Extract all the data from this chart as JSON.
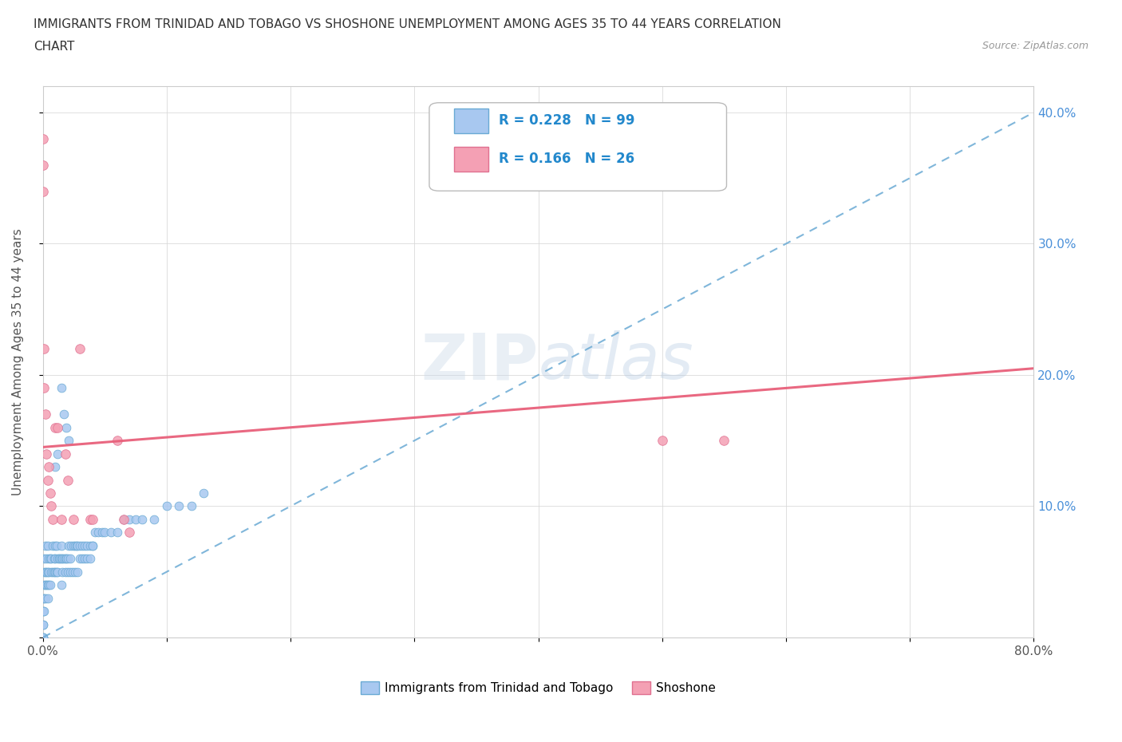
{
  "title_line1": "IMMIGRANTS FROM TRINIDAD AND TOBAGO VS SHOSHONE UNEMPLOYMENT AMONG AGES 35 TO 44 YEARS CORRELATION",
  "title_line2": "CHART",
  "source_text": "Source: ZipAtlas.com",
  "ylabel": "Unemployment Among Ages 35 to 44 years",
  "x_min": 0.0,
  "x_max": 0.8,
  "y_min": 0.0,
  "y_max": 0.42,
  "blue_color": "#a8c8f0",
  "blue_edge_color": "#6aaad4",
  "pink_color": "#f4a0b4",
  "pink_edge_color": "#e07090",
  "blue_line_color": "#6aaad4",
  "pink_line_color": "#e8607a",
  "grid_color": "#d8d8d8",
  "legend_R1": "0.228",
  "legend_N1": "99",
  "legend_R2": "0.166",
  "legend_N2": "26",
  "watermark": "ZIPatlas",
  "blue_trend_x0": 0.0,
  "blue_trend_y0": 0.0,
  "blue_trend_x1": 0.8,
  "blue_trend_y1": 0.4,
  "pink_trend_x0": 0.0,
  "pink_trend_y0": 0.145,
  "pink_trend_x1": 0.8,
  "pink_trend_y1": 0.205,
  "blue_x": [
    0.0,
    0.0,
    0.0,
    0.0,
    0.0,
    0.0,
    0.0,
    0.0,
    0.001,
    0.001,
    0.001,
    0.001,
    0.001,
    0.002,
    0.002,
    0.002,
    0.002,
    0.003,
    0.003,
    0.003,
    0.004,
    0.004,
    0.004,
    0.004,
    0.005,
    0.005,
    0.005,
    0.006,
    0.006,
    0.007,
    0.007,
    0.008,
    0.008,
    0.009,
    0.009,
    0.01,
    0.01,
    0.01,
    0.011,
    0.011,
    0.012,
    0.012,
    0.013,
    0.014,
    0.015,
    0.015,
    0.016,
    0.017,
    0.018,
    0.019,
    0.02,
    0.021,
    0.022,
    0.023,
    0.025,
    0.026,
    0.027,
    0.028,
    0.03,
    0.032,
    0.034,
    0.036,
    0.038,
    0.04,
    0.042,
    0.045,
    0.048,
    0.05,
    0.055,
    0.06,
    0.065,
    0.07,
    0.075,
    0.08,
    0.09,
    0.1,
    0.11,
    0.12,
    0.13,
    0.015,
    0.016,
    0.018,
    0.02,
    0.022,
    0.024,
    0.026,
    0.028,
    0.03,
    0.032,
    0.034,
    0.036,
    0.038,
    0.04,
    0.01,
    0.012,
    0.015,
    0.017,
    0.019,
    0.021
  ],
  "blue_y": [
    0.0,
    0.0,
    0.0,
    0.01,
    0.01,
    0.02,
    0.02,
    0.03,
    0.02,
    0.03,
    0.04,
    0.05,
    0.06,
    0.03,
    0.04,
    0.05,
    0.07,
    0.04,
    0.05,
    0.06,
    0.03,
    0.04,
    0.05,
    0.07,
    0.04,
    0.05,
    0.06,
    0.04,
    0.06,
    0.05,
    0.06,
    0.05,
    0.07,
    0.05,
    0.06,
    0.05,
    0.06,
    0.07,
    0.05,
    0.07,
    0.05,
    0.06,
    0.06,
    0.06,
    0.06,
    0.07,
    0.06,
    0.06,
    0.06,
    0.06,
    0.06,
    0.07,
    0.06,
    0.07,
    0.07,
    0.07,
    0.07,
    0.07,
    0.07,
    0.07,
    0.07,
    0.07,
    0.07,
    0.07,
    0.08,
    0.08,
    0.08,
    0.08,
    0.08,
    0.08,
    0.09,
    0.09,
    0.09,
    0.09,
    0.09,
    0.1,
    0.1,
    0.1,
    0.11,
    0.04,
    0.05,
    0.05,
    0.05,
    0.05,
    0.05,
    0.05,
    0.05,
    0.06,
    0.06,
    0.06,
    0.06,
    0.06,
    0.07,
    0.13,
    0.14,
    0.19,
    0.17,
    0.16,
    0.15
  ],
  "pink_x": [
    0.0,
    0.0,
    0.0,
    0.001,
    0.001,
    0.002,
    0.003,
    0.004,
    0.005,
    0.006,
    0.007,
    0.008,
    0.01,
    0.012,
    0.015,
    0.018,
    0.02,
    0.025,
    0.03,
    0.038,
    0.04,
    0.06,
    0.065,
    0.07,
    0.5,
    0.55
  ],
  "pink_y": [
    0.38,
    0.36,
    0.34,
    0.22,
    0.19,
    0.17,
    0.14,
    0.12,
    0.13,
    0.11,
    0.1,
    0.09,
    0.16,
    0.16,
    0.09,
    0.14,
    0.12,
    0.09,
    0.22,
    0.09,
    0.09,
    0.15,
    0.09,
    0.08,
    0.15,
    0.15
  ]
}
